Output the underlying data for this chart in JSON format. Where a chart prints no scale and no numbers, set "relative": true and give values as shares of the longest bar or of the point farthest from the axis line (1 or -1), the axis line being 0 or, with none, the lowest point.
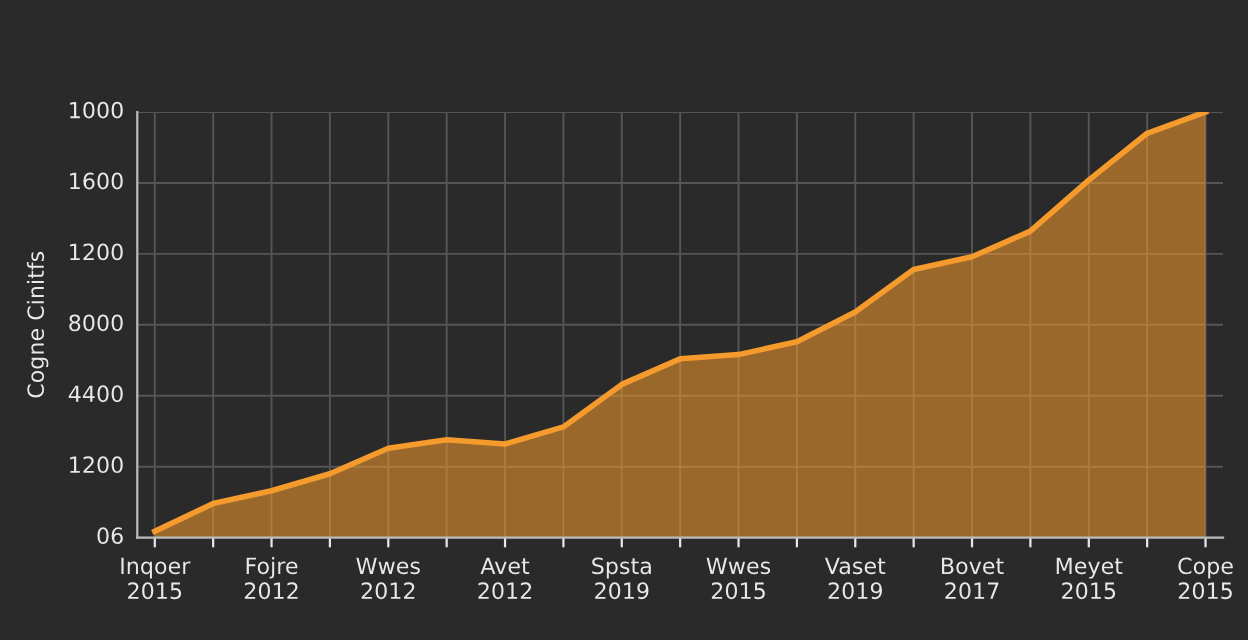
{
  "chart_data": {
    "type": "area",
    "relative": true,
    "ylabel": "Cogne Cinitfs",
    "categories": [
      "Inqoer\n2015",
      null,
      "Fojre\n2012",
      null,
      "Wwes\n2012",
      null,
      "Avet\n2012",
      null,
      "Spsta\n2019",
      null,
      "Wwes\n2015",
      null,
      "Vaset\n2019",
      null,
      "Bovet\n2017",
      null,
      "Meyet\n2015",
      null,
      "Cope\n2015"
    ],
    "series": [
      {
        "color": "#f59a2c",
        "values": [
          0.015,
          0.08,
          0.11,
          0.15,
          0.21,
          0.23,
          0.22,
          0.26,
          0.36,
          0.42,
          0.43,
          0.46,
          0.53,
          0.63,
          0.66,
          0.72,
          0.84,
          0.95,
          1.0
        ]
      }
    ],
    "annotations": [
      "06",
      "1200",
      "4400",
      "8000",
      "1200",
      "1600",
      "1000"
    ],
    "grid": true
  }
}
